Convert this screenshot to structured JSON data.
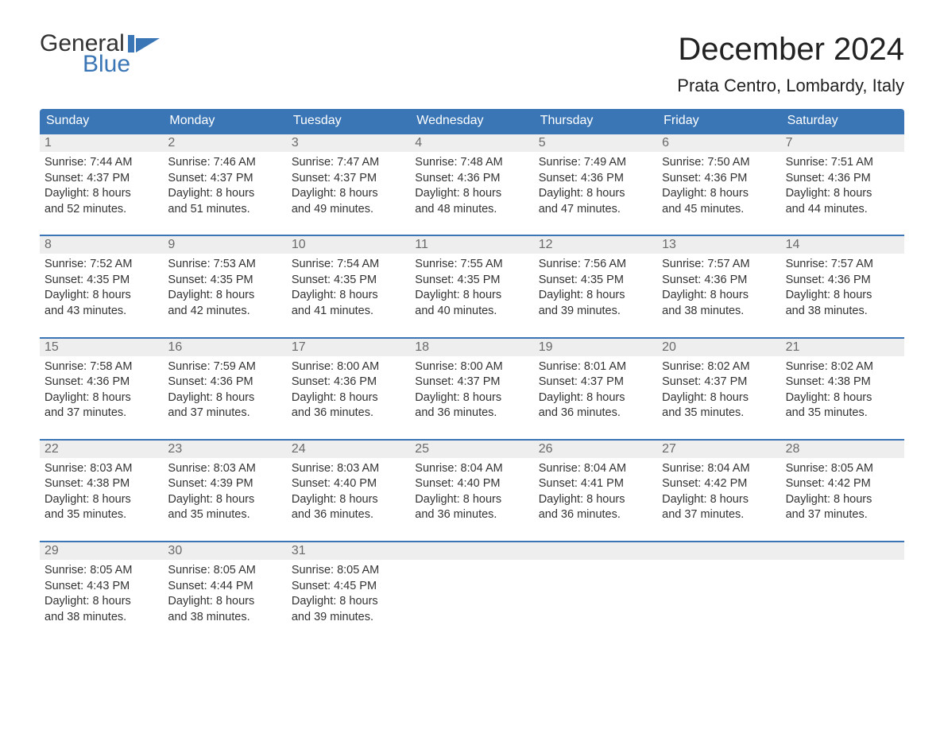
{
  "brand": {
    "general": "General",
    "blue": "Blue"
  },
  "colors": {
    "accent": "#3a76b6",
    "header_bg": "#3a76b6",
    "daynum_bg": "#eeeeee",
    "text": "#333333",
    "daynum_text": "#6a6a6a",
    "flag": "#3a76b6"
  },
  "title": "December 2024",
  "location": "Prata Centro, Lombardy, Italy",
  "weekdays": [
    "Sunday",
    "Monday",
    "Tuesday",
    "Wednesday",
    "Thursday",
    "Friday",
    "Saturday"
  ],
  "weeks": [
    [
      {
        "num": "1",
        "sunrise": "Sunrise: 7:44 AM",
        "sunset": "Sunset: 4:37 PM",
        "d1": "Daylight: 8 hours",
        "d2": "and 52 minutes."
      },
      {
        "num": "2",
        "sunrise": "Sunrise: 7:46 AM",
        "sunset": "Sunset: 4:37 PM",
        "d1": "Daylight: 8 hours",
        "d2": "and 51 minutes."
      },
      {
        "num": "3",
        "sunrise": "Sunrise: 7:47 AM",
        "sunset": "Sunset: 4:37 PM",
        "d1": "Daylight: 8 hours",
        "d2": "and 49 minutes."
      },
      {
        "num": "4",
        "sunrise": "Sunrise: 7:48 AM",
        "sunset": "Sunset: 4:36 PM",
        "d1": "Daylight: 8 hours",
        "d2": "and 48 minutes."
      },
      {
        "num": "5",
        "sunrise": "Sunrise: 7:49 AM",
        "sunset": "Sunset: 4:36 PM",
        "d1": "Daylight: 8 hours",
        "d2": "and 47 minutes."
      },
      {
        "num": "6",
        "sunrise": "Sunrise: 7:50 AM",
        "sunset": "Sunset: 4:36 PM",
        "d1": "Daylight: 8 hours",
        "d2": "and 45 minutes."
      },
      {
        "num": "7",
        "sunrise": "Sunrise: 7:51 AM",
        "sunset": "Sunset: 4:36 PM",
        "d1": "Daylight: 8 hours",
        "d2": "and 44 minutes."
      }
    ],
    [
      {
        "num": "8",
        "sunrise": "Sunrise: 7:52 AM",
        "sunset": "Sunset: 4:35 PM",
        "d1": "Daylight: 8 hours",
        "d2": "and 43 minutes."
      },
      {
        "num": "9",
        "sunrise": "Sunrise: 7:53 AM",
        "sunset": "Sunset: 4:35 PM",
        "d1": "Daylight: 8 hours",
        "d2": "and 42 minutes."
      },
      {
        "num": "10",
        "sunrise": "Sunrise: 7:54 AM",
        "sunset": "Sunset: 4:35 PM",
        "d1": "Daylight: 8 hours",
        "d2": "and 41 minutes."
      },
      {
        "num": "11",
        "sunrise": "Sunrise: 7:55 AM",
        "sunset": "Sunset: 4:35 PM",
        "d1": "Daylight: 8 hours",
        "d2": "and 40 minutes."
      },
      {
        "num": "12",
        "sunrise": "Sunrise: 7:56 AM",
        "sunset": "Sunset: 4:35 PM",
        "d1": "Daylight: 8 hours",
        "d2": "and 39 minutes."
      },
      {
        "num": "13",
        "sunrise": "Sunrise: 7:57 AM",
        "sunset": "Sunset: 4:36 PM",
        "d1": "Daylight: 8 hours",
        "d2": "and 38 minutes."
      },
      {
        "num": "14",
        "sunrise": "Sunrise: 7:57 AM",
        "sunset": "Sunset: 4:36 PM",
        "d1": "Daylight: 8 hours",
        "d2": "and 38 minutes."
      }
    ],
    [
      {
        "num": "15",
        "sunrise": "Sunrise: 7:58 AM",
        "sunset": "Sunset: 4:36 PM",
        "d1": "Daylight: 8 hours",
        "d2": "and 37 minutes."
      },
      {
        "num": "16",
        "sunrise": "Sunrise: 7:59 AM",
        "sunset": "Sunset: 4:36 PM",
        "d1": "Daylight: 8 hours",
        "d2": "and 37 minutes."
      },
      {
        "num": "17",
        "sunrise": "Sunrise: 8:00 AM",
        "sunset": "Sunset: 4:36 PM",
        "d1": "Daylight: 8 hours",
        "d2": "and 36 minutes."
      },
      {
        "num": "18",
        "sunrise": "Sunrise: 8:00 AM",
        "sunset": "Sunset: 4:37 PM",
        "d1": "Daylight: 8 hours",
        "d2": "and 36 minutes."
      },
      {
        "num": "19",
        "sunrise": "Sunrise: 8:01 AM",
        "sunset": "Sunset: 4:37 PM",
        "d1": "Daylight: 8 hours",
        "d2": "and 36 minutes."
      },
      {
        "num": "20",
        "sunrise": "Sunrise: 8:02 AM",
        "sunset": "Sunset: 4:37 PM",
        "d1": "Daylight: 8 hours",
        "d2": "and 35 minutes."
      },
      {
        "num": "21",
        "sunrise": "Sunrise: 8:02 AM",
        "sunset": "Sunset: 4:38 PM",
        "d1": "Daylight: 8 hours",
        "d2": "and 35 minutes."
      }
    ],
    [
      {
        "num": "22",
        "sunrise": "Sunrise: 8:03 AM",
        "sunset": "Sunset: 4:38 PM",
        "d1": "Daylight: 8 hours",
        "d2": "and 35 minutes."
      },
      {
        "num": "23",
        "sunrise": "Sunrise: 8:03 AM",
        "sunset": "Sunset: 4:39 PM",
        "d1": "Daylight: 8 hours",
        "d2": "and 35 minutes."
      },
      {
        "num": "24",
        "sunrise": "Sunrise: 8:03 AM",
        "sunset": "Sunset: 4:40 PM",
        "d1": "Daylight: 8 hours",
        "d2": "and 36 minutes."
      },
      {
        "num": "25",
        "sunrise": "Sunrise: 8:04 AM",
        "sunset": "Sunset: 4:40 PM",
        "d1": "Daylight: 8 hours",
        "d2": "and 36 minutes."
      },
      {
        "num": "26",
        "sunrise": "Sunrise: 8:04 AM",
        "sunset": "Sunset: 4:41 PM",
        "d1": "Daylight: 8 hours",
        "d2": "and 36 minutes."
      },
      {
        "num": "27",
        "sunrise": "Sunrise: 8:04 AM",
        "sunset": "Sunset: 4:42 PM",
        "d1": "Daylight: 8 hours",
        "d2": "and 37 minutes."
      },
      {
        "num": "28",
        "sunrise": "Sunrise: 8:05 AM",
        "sunset": "Sunset: 4:42 PM",
        "d1": "Daylight: 8 hours",
        "d2": "and 37 minutes."
      }
    ],
    [
      {
        "num": "29",
        "sunrise": "Sunrise: 8:05 AM",
        "sunset": "Sunset: 4:43 PM",
        "d1": "Daylight: 8 hours",
        "d2": "and 38 minutes."
      },
      {
        "num": "30",
        "sunrise": "Sunrise: 8:05 AM",
        "sunset": "Sunset: 4:44 PM",
        "d1": "Daylight: 8 hours",
        "d2": "and 38 minutes."
      },
      {
        "num": "31",
        "sunrise": "Sunrise: 8:05 AM",
        "sunset": "Sunset: 4:45 PM",
        "d1": "Daylight: 8 hours",
        "d2": "and 39 minutes."
      },
      null,
      null,
      null,
      null
    ]
  ]
}
